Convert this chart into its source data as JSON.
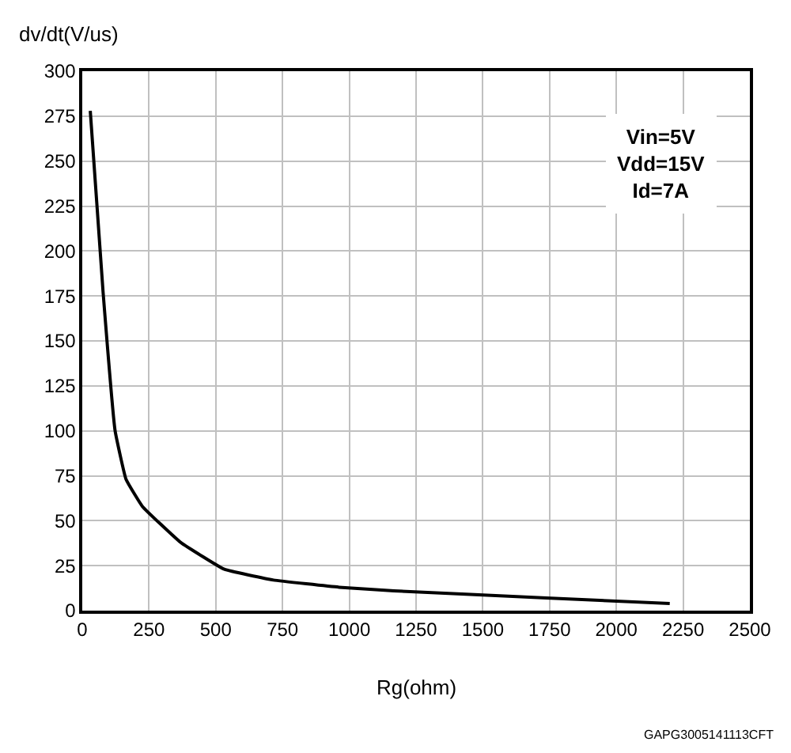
{
  "chart_data": {
    "type": "line",
    "xlabel": "Rg(ohm)",
    "ylabel": "dv/dt(V/us)",
    "x": [
      30,
      78,
      123,
      164,
      225,
      368,
      532,
      716,
      962,
      1167,
      1738,
      2200
    ],
    "series": [
      {
        "color": "#000000",
        "values": [
          278,
          177,
          100,
          73,
          58,
          38,
          23,
          17,
          13,
          11,
          7,
          4
        ]
      }
    ],
    "xlim": [
      0,
      2500
    ],
    "xticks": [
      0,
      250,
      500,
      750,
      1000,
      1250,
      1500,
      1750,
      2000,
      2250,
      2500
    ],
    "ylim": [
      0,
      300
    ],
    "yticks": [
      0,
      25,
      50,
      75,
      100,
      125,
      150,
      175,
      200,
      225,
      250,
      275,
      300
    ],
    "grid": true,
    "legend": false,
    "marker": "none",
    "line_style": "solid",
    "annotations": [
      "Vin=5V",
      "Vdd=15V",
      "Id=7A",
      "GAPG3005141113CFT"
    ]
  }
}
